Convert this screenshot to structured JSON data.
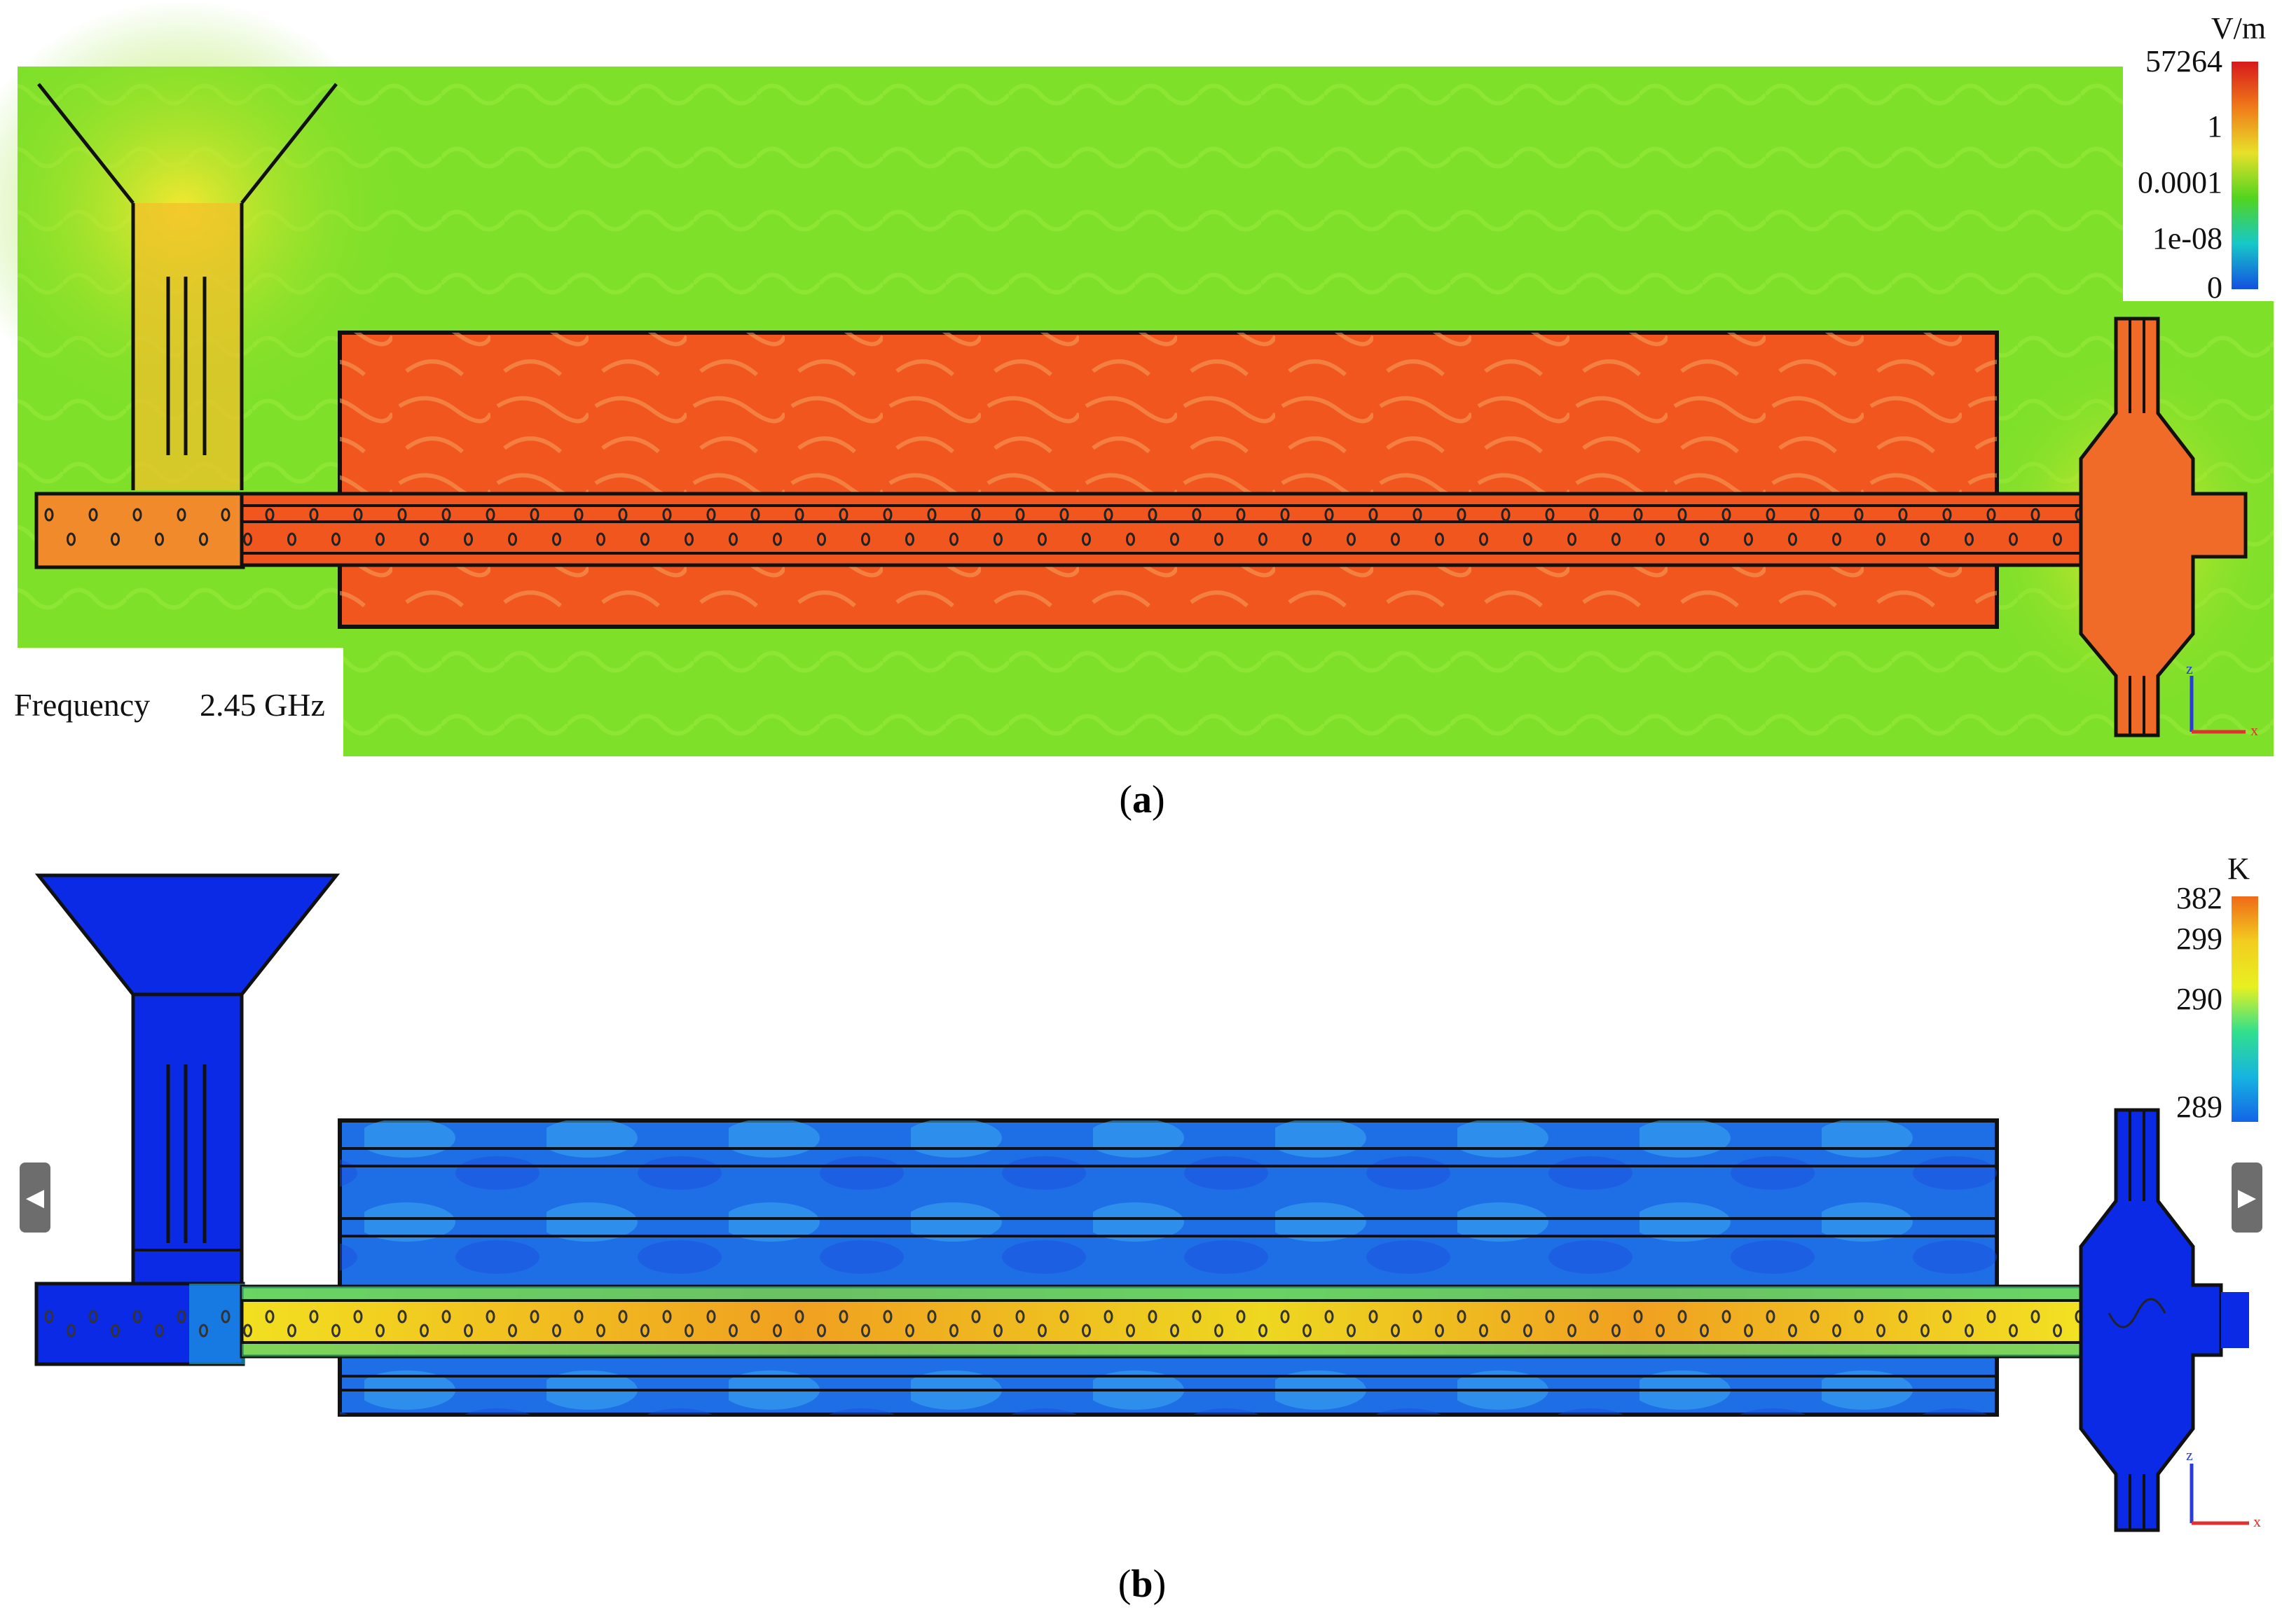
{
  "panel_a": {
    "caption_letter": "a",
    "legend": {
      "unit": "V/m",
      "max_label": "57264",
      "ticks": [
        "1",
        "0.0001",
        "1e-08",
        "0"
      ],
      "colors": [
        "#d7191c",
        "#f07a1a",
        "#e8e02a",
        "#52d420",
        "#16c8c8",
        "#1450e0"
      ]
    },
    "frequency_label": "Frequency",
    "frequency_value": "2.45 GHz",
    "background_color": "#7fe02a",
    "cavity_color": "#f0561e",
    "axis_labels": [
      "z",
      "x"
    ]
  },
  "panel_b": {
    "caption_letter": "b",
    "legend": {
      "unit": "K",
      "ticks": [
        "382",
        "299",
        "290",
        "289"
      ],
      "colors": [
        "#f06a18",
        "#f2cd20",
        "#e8f020",
        "#32e08c",
        "#16b4e0",
        "#1464e8"
      ]
    },
    "structure_color": "#0a2ae6",
    "cavity_color": "#1e6ee6",
    "tube_color": "#ecd822",
    "axis_labels": [
      "z",
      "x"
    ],
    "nav": {
      "prev_glyph": "◀",
      "next_glyph": "▶"
    }
  }
}
